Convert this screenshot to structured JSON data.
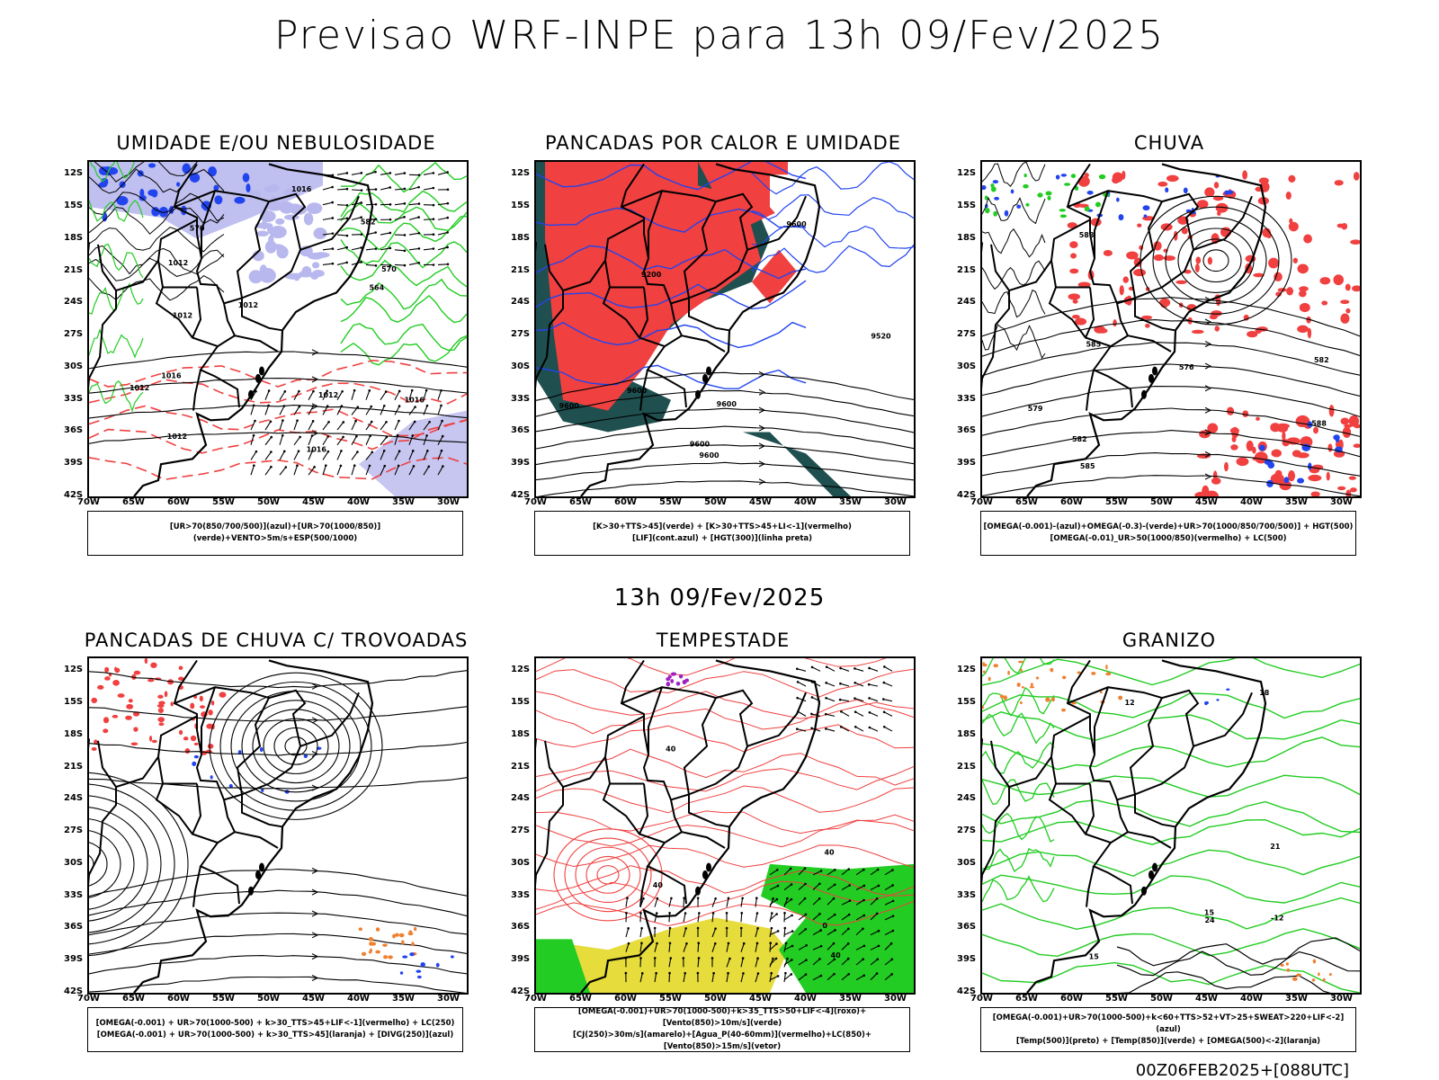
{
  "header": {
    "title": "Previsao WRF-INPE  para 13h 09/Fev/2025",
    "mid_time": "13h 09/Fev/2025",
    "run_id": "00Z06FEB2025+[088UTC]"
  },
  "axes": {
    "lat_labels": [
      "12S",
      "15S",
      "18S",
      "21S",
      "24S",
      "27S",
      "30S",
      "33S",
      "36S",
      "39S",
      "42S"
    ],
    "lon_labels": [
      "70W",
      "65W",
      "60W",
      "55W",
      "50W",
      "45W",
      "40W",
      "35W",
      "30W"
    ]
  },
  "colors": {
    "red": "#f04040",
    "green": "#22cc22",
    "blue": "#2244ee",
    "lavender": "#b8b8ee",
    "teal": "#1f4f4f",
    "yellow": "#e6dc3c",
    "orange": "#f08030",
    "purple": "#a020c0"
  },
  "panels": [
    {
      "id": "umidade",
      "title": "UMIDADE E/OU NEBULOSIDADE",
      "legend": [
        "[UR>70(850/700/500)](azul)+[UR>70(1000/850)](verde)+VENTO>5m/s+ESP(500/1000)"
      ],
      "contour_labels": [
        "1012",
        "1012",
        "1012",
        "1012",
        "1016",
        "1016",
        "1012",
        "1016",
        "1012",
        "1016",
        "570",
        "570",
        "564",
        "582"
      ]
    },
    {
      "id": "pancadas-calor",
      "title": "PANCADAS POR CALOR E UMIDADE",
      "legend": [
        "[K>30+TTS>45](verde) + [K>30+TTS>45+LI<-1](vermelho)",
        "[LIF](cont.azul) + [HGT(300)](linha preta)"
      ],
      "contour_labels": [
        "9600",
        "9600",
        "9600",
        "9600",
        "9600",
        "9600",
        "9520",
        "9200"
      ]
    },
    {
      "id": "chuva",
      "title": "CHUVA",
      "legend": [
        "[OMEGA(-0.001)-(azul)+OMEGA(-0.3)-(verde)+UR>70(1000/850/700/500)] + HGT(500)",
        "[OMEGA(-0.01)_UR>50(1000/850)(vermelho) + LC(500)"
      ],
      "contour_labels": [
        "585",
        "588",
        "588",
        "585",
        "582",
        "579",
        "576",
        "582"
      ]
    },
    {
      "id": "trovoadas",
      "title": "PANCADAS DE CHUVA C/ TROVOADAS",
      "legend": [
        "[OMEGA(-0.001) + UR>70(1000-500) + k>30_TTS>45+LIF<-1](vermelho) + LC(250)",
        "[OMEGA(-0.001) + UR>70(1000-500) + k>30_TTS>45](laranja) + [DIVG(250)](azul)"
      ],
      "contour_labels": []
    },
    {
      "id": "tempestade",
      "title": "TEMPESTADE",
      "legend": [
        "[OMEGA(-0.001)+UR>70(1000-500)+k>35_TTS>50+LIF<-4](roxo)+[Vento(850)>10m/s](verde)",
        "[CJ(250)>30m/s](amarelo)+[Agua_P(40-60mm)](vermelho)+LC(850)+[Vento(850)>15m/s](vetor)"
      ],
      "contour_labels": [
        "40",
        "40",
        "40",
        "40",
        "0"
      ]
    },
    {
      "id": "granizo",
      "title": "GRANIZO",
      "legend": [
        "[OMEGA(-0.001)+UR>70(1000-500)+k<60+TTS>52+VT>25+SWEAT>220+LIF<-2](azul)",
        "[Temp(500)](preto) + [Temp(850)](verde) + [OMEGA(500)<-2](laranja)"
      ],
      "contour_labels": [
        "12",
        "15",
        "18",
        "21",
        "24",
        "-12",
        "15"
      ]
    }
  ]
}
